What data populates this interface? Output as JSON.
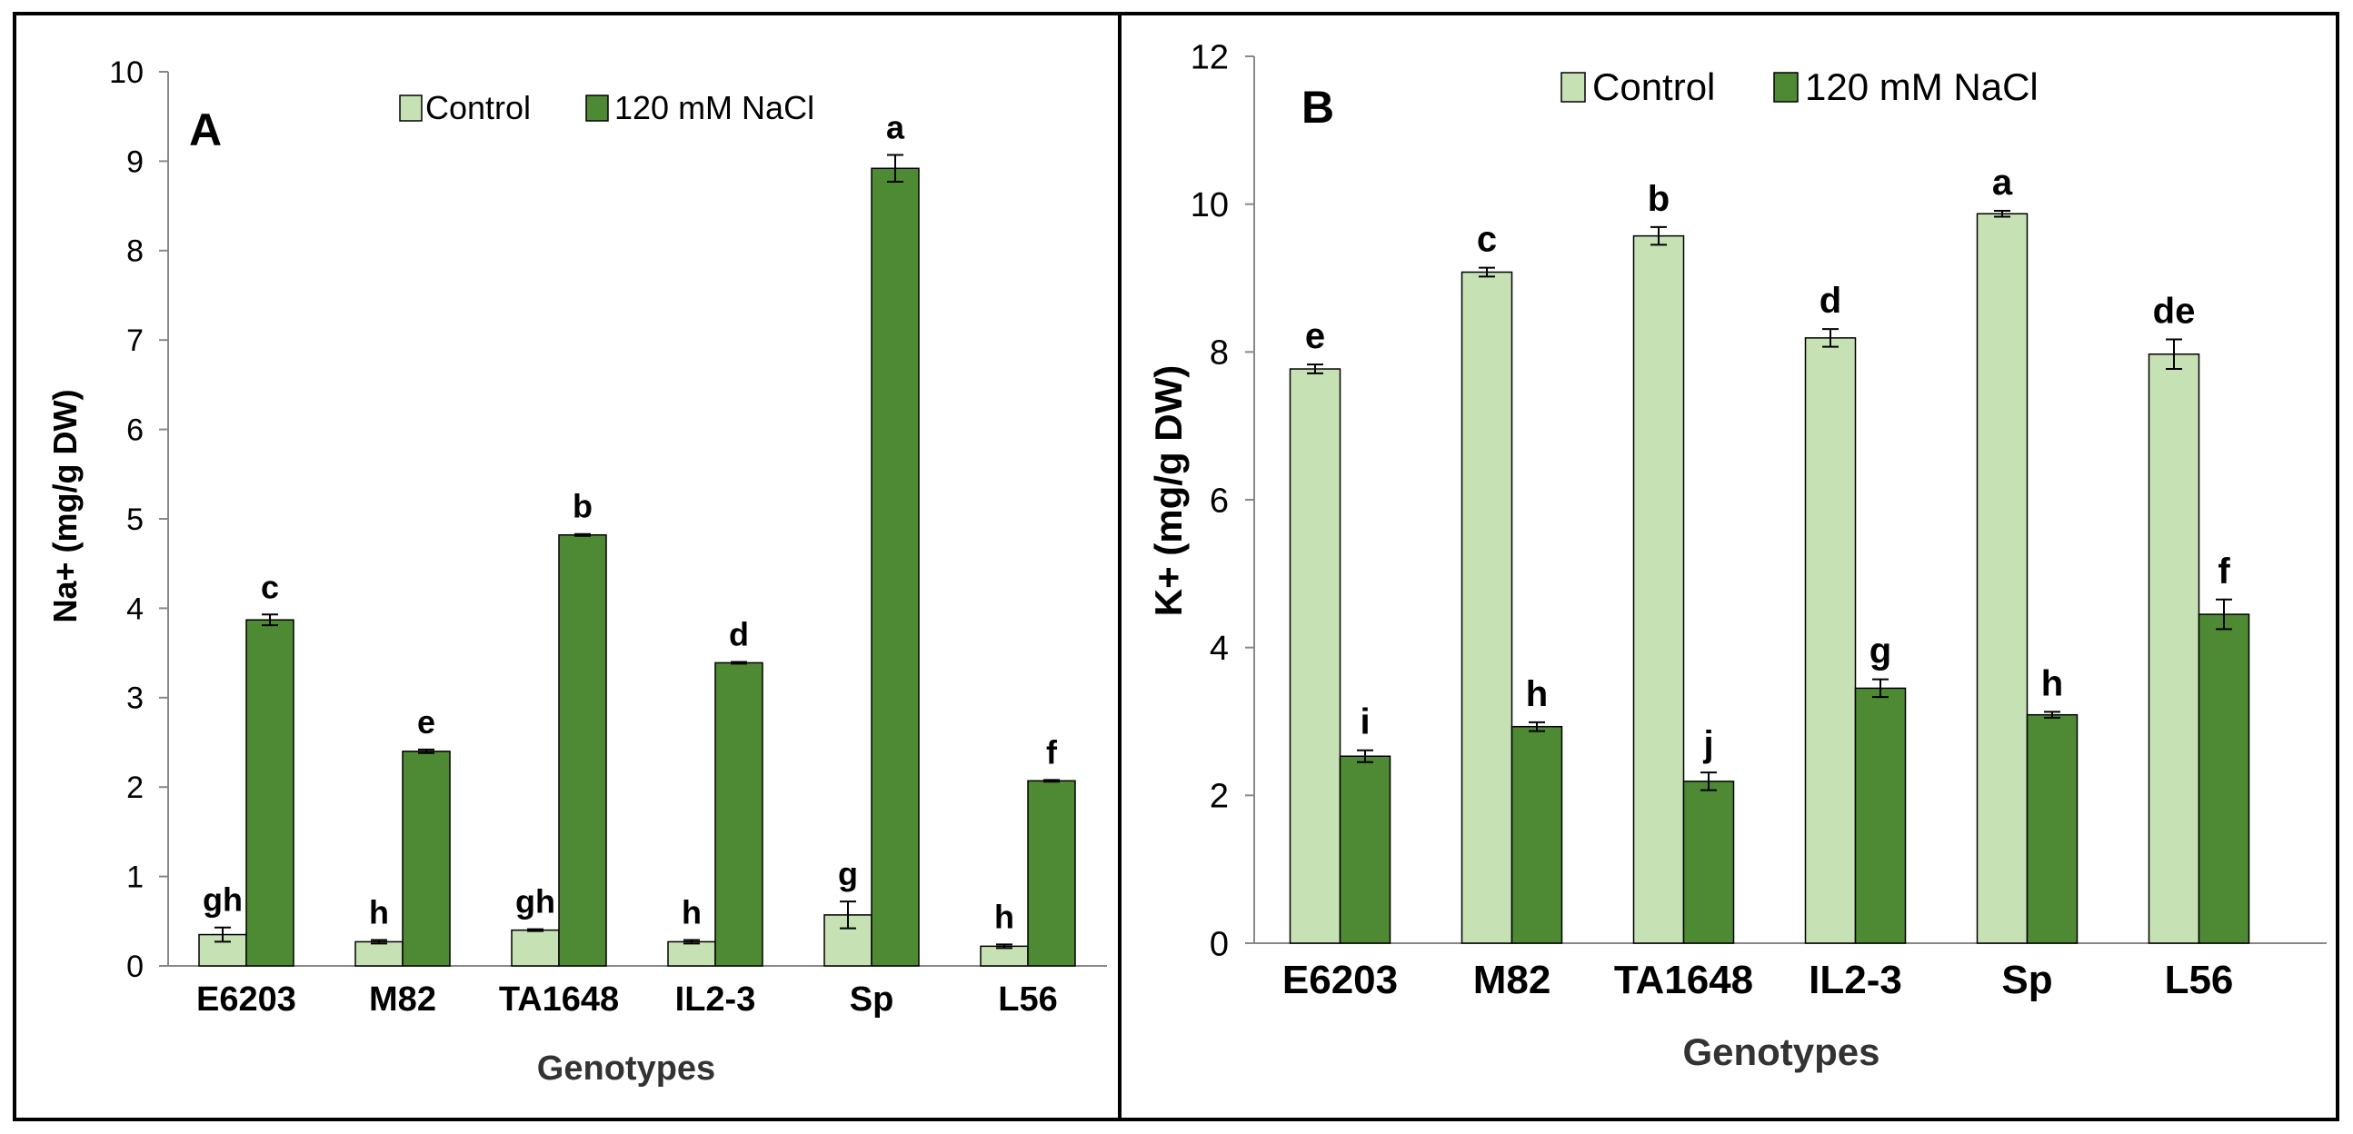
{
  "chart_data": [
    {
      "type": "bar",
      "panel_label": "A",
      "categories": [
        "E6203",
        "M82",
        "TA1648",
        "IL2-3",
        "Sp",
        "L56"
      ],
      "series": [
        {
          "name": "Control",
          "values": [
            0.35,
            0.27,
            0.4,
            0.27,
            0.57,
            0.22
          ],
          "errors": [
            0.08,
            0.02,
            0.01,
            0.02,
            0.15,
            0.02
          ],
          "letters": [
            "gh",
            "h",
            "gh",
            "h",
            "g",
            "h"
          ],
          "color": "#c6e2b4"
        },
        {
          "name": "120 mM NaCl",
          "values": [
            3.87,
            2.4,
            4.82,
            3.39,
            8.92,
            2.07
          ],
          "errors": [
            0.06,
            0.02,
            0.01,
            0.01,
            0.15,
            0.01
          ],
          "letters": [
            "c",
            "e",
            "b",
            "d",
            "a",
            "f"
          ],
          "color": "#4e8a34"
        }
      ],
      "xlabel": "Genotypes",
      "ylabel": "Na+ (mg/g DW)",
      "ylim": [
        0,
        10
      ],
      "yticks": [
        "0",
        "1",
        "2",
        "3",
        "4",
        "5",
        "6",
        "7",
        "8",
        "9",
        "10"
      ]
    },
    {
      "type": "bar",
      "panel_label": "B",
      "categories": [
        "E6203",
        "M82",
        "TA1648",
        "IL2-3",
        "Sp",
        "L56"
      ],
      "series": [
        {
          "name": "Control",
          "values": [
            7.77,
            9.08,
            9.57,
            8.19,
            9.87,
            7.97
          ],
          "errors": [
            0.06,
            0.06,
            0.12,
            0.12,
            0.04,
            0.2
          ],
          "letters": [
            "e",
            "c",
            "b",
            "d",
            "a",
            "de"
          ],
          "color": "#c6e2b4"
        },
        {
          "name": "120 mM NaCl",
          "values": [
            2.53,
            2.93,
            2.19,
            3.45,
            3.09,
            4.45
          ],
          "errors": [
            0.08,
            0.06,
            0.12,
            0.12,
            0.04,
            0.2
          ],
          "letters": [
            "i",
            "h",
            "j",
            "g",
            "h",
            "f"
          ],
          "color": "#4e8a34"
        }
      ],
      "xlabel": "Genotypes",
      "ylabel": "K+ (mg/g DW)",
      "ylim": [
        0,
        12
      ],
      "yticks": [
        "0",
        "2",
        "4",
        "6",
        "8",
        "10",
        "12"
      ]
    }
  ]
}
